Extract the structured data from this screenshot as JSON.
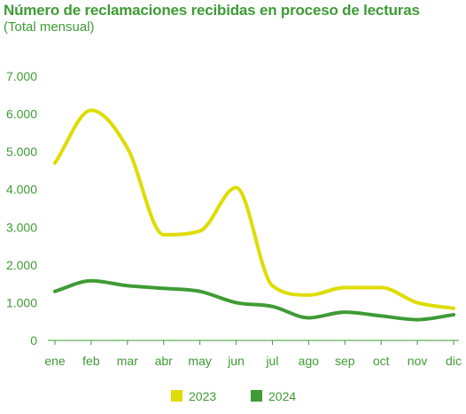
{
  "chart_data": {
    "type": "line",
    "title": "Número de reclamaciones recibidas en proceso de lecturas",
    "subtitle": "(Total mensual)",
    "xlabel": "",
    "ylabel": "",
    "categories": [
      "ene",
      "feb",
      "mar",
      "abr",
      "may",
      "jun",
      "jul",
      "ago",
      "sep",
      "oct",
      "nov",
      "dic"
    ],
    "ylim": [
      0,
      7000
    ],
    "yticks": [
      0,
      1000,
      2000,
      3000,
      4000,
      5000,
      6000,
      7000
    ],
    "ytick_labels": [
      "0",
      "1.000",
      "2.000",
      "3.000",
      "4.000",
      "5.000",
      "6.000",
      "7.000"
    ],
    "grid": false,
    "legend_position": "bottom-center",
    "series": [
      {
        "name": "2023",
        "color": "#dedc00",
        "values": [
          4700,
          6100,
          5100,
          2800,
          2900,
          4050,
          1450,
          1200,
          1400,
          1400,
          1000,
          850
        ]
      },
      {
        "name": "2024",
        "color": "#3e9b35",
        "values": [
          1300,
          1580,
          1450,
          1380,
          1300,
          1000,
          900,
          600,
          750,
          650,
          550,
          680
        ]
      }
    ]
  }
}
